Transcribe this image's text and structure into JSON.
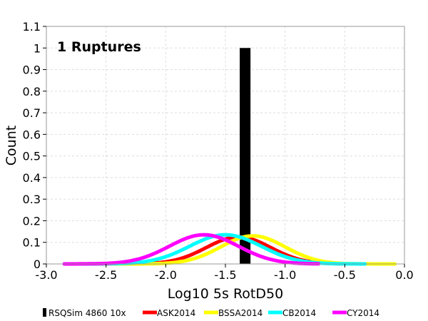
{
  "chart_data": {
    "type": "line",
    "annotation": "1 Ruptures",
    "xlabel": "Log10 5s RotD50",
    "ylabel": "Count",
    "xlim": [
      -3.0,
      0.0
    ],
    "ylim": [
      0,
      1.1
    ],
    "x_ticks": [
      "-3.0",
      "-2.5",
      "-2.0",
      "-1.5",
      "-1.0",
      "-0.5",
      "0.0"
    ],
    "y_ticks": [
      "0",
      "0.1",
      "0.2",
      "0.3",
      "0.4",
      "0.5",
      "0.6",
      "0.7",
      "0.8",
      "0.9",
      "1",
      "1.1"
    ],
    "grid": true,
    "legend_position": "bottom",
    "bars": [
      {
        "name": "RSQSim 4860 10x",
        "color": "#000000",
        "x_start": -1.38,
        "x_end": -1.29,
        "value": 1
      }
    ],
    "series": [
      {
        "name": "ASK2014",
        "color": "#ff0000",
        "mean": -1.39,
        "std": 0.27,
        "peak": 0.125,
        "x_range": [
          -2.85,
          -0.52
        ]
      },
      {
        "name": "BSSA2014",
        "color": "#ffff00",
        "mean": -1.27,
        "std": 0.27,
        "peak": 0.13,
        "x_range": [
          -2.85,
          -0.08
        ]
      },
      {
        "name": "CB2014",
        "color": "#00ffff",
        "mean": -1.5,
        "std": 0.3,
        "peak": 0.135,
        "x_range": [
          -2.85,
          -0.33
        ]
      },
      {
        "name": "CY2014",
        "color": "#ff00ff",
        "mean": -1.68,
        "std": 0.29,
        "peak": 0.135,
        "x_range": [
          -2.85,
          -0.72
        ]
      }
    ]
  }
}
